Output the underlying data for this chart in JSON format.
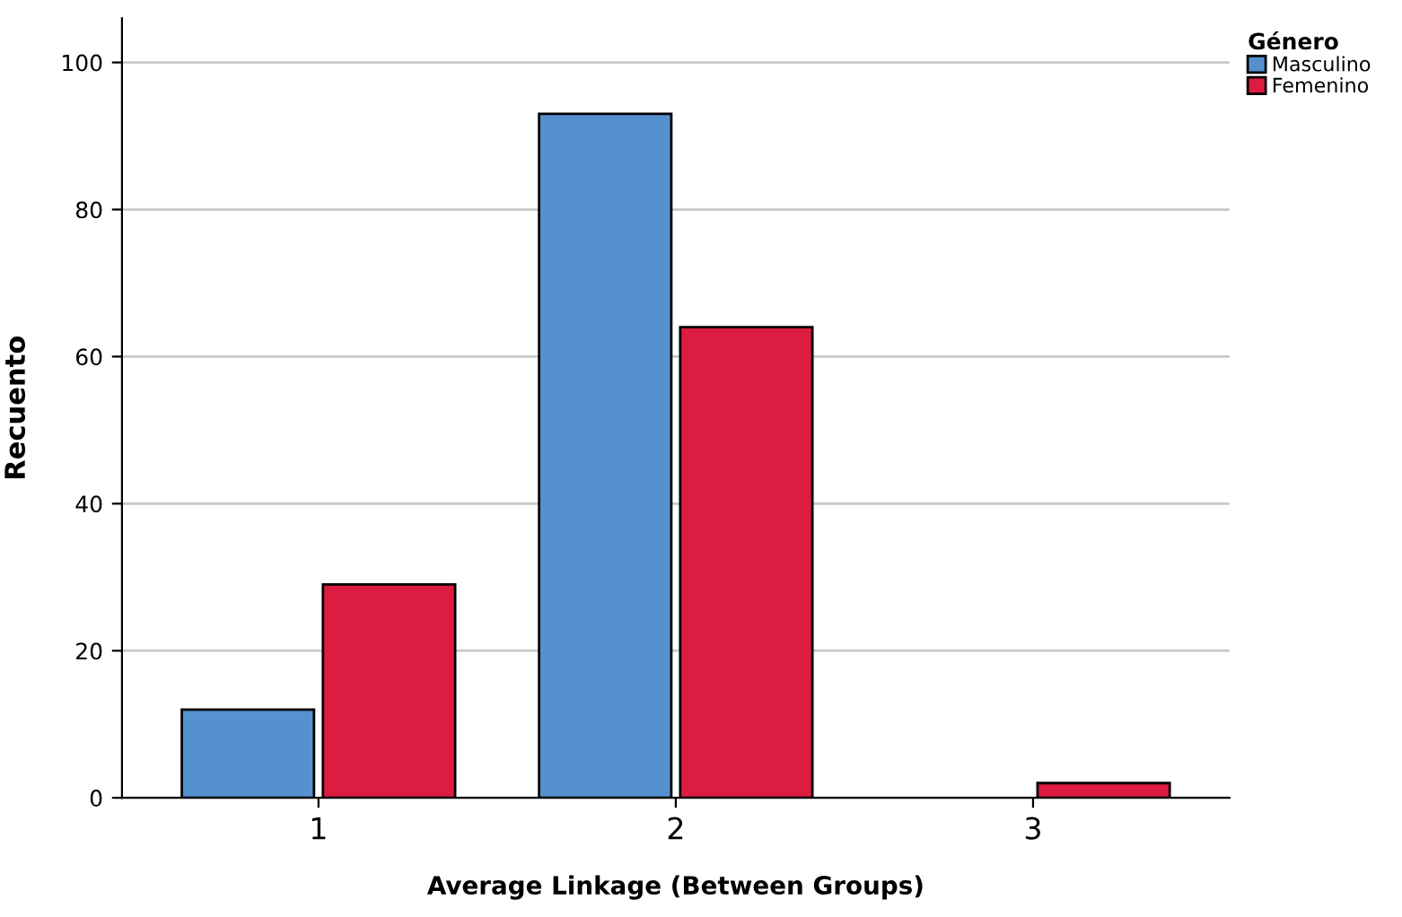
{
  "chart_data": {
    "type": "bar",
    "xlabel": "Average Linkage (Between Groups)",
    "ylabel": "Recuento",
    "legend_title": "Género",
    "categories": [
      "1",
      "2",
      "3"
    ],
    "series": [
      {
        "name": "Masculino",
        "color": "#5591cf",
        "values": [
          12,
          93,
          null
        ]
      },
      {
        "name": "Femenino",
        "color": "#dc1c40",
        "values": [
          29,
          64,
          2
        ]
      }
    ],
    "ylim": [
      0,
      106
    ],
    "yticks": [
      0,
      20,
      40,
      60,
      80,
      100
    ],
    "grid": "y",
    "legend": "top right"
  }
}
